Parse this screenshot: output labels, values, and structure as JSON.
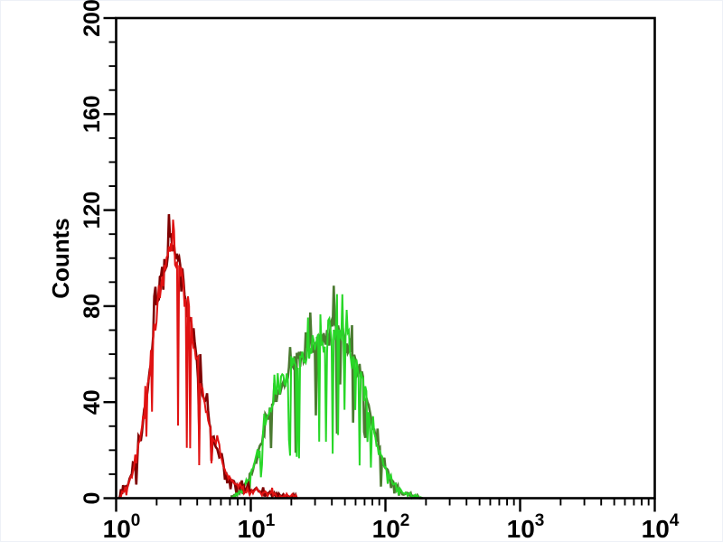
{
  "page": {
    "background": "#ffffff",
    "edge_border": "#edf1f7",
    "description": "Flow cytometry single-parameter histogram overlay with red (negative control) and green (positive) populations"
  },
  "chart_data": {
    "type": "area",
    "subtype": "flow-cytometry-histogram-overlay",
    "title": "",
    "xlabel": "",
    "ylabel": "Counts",
    "x_scale": "log10",
    "x_range_log10": [
      0,
      4
    ],
    "ylim": [
      0,
      200
    ],
    "grid": false,
    "legend": null,
    "frame_color": "#000000",
    "y_major_step": 40,
    "y_minor_step": 10,
    "y_ticks": [
      {
        "value": 0,
        "label": "0"
      },
      {
        "value": 40,
        "label": "40"
      },
      {
        "value": 80,
        "label": "80"
      },
      {
        "value": 120,
        "label": "120"
      },
      {
        "value": 160,
        "label": "160"
      },
      {
        "value": 200,
        "label": "200"
      }
    ],
    "x_ticks": [
      {
        "log10": 0,
        "base": "10",
        "exp": "0"
      },
      {
        "log10": 1,
        "base": "10",
        "exp": "1"
      },
      {
        "log10": 2,
        "base": "10",
        "exp": "2"
      },
      {
        "log10": 3,
        "base": "10",
        "exp": "3"
      },
      {
        "log10": 4,
        "base": "10",
        "exp": "4"
      }
    ],
    "series": [
      {
        "name": "green-histogram",
        "role": "stained population (right peak)",
        "color_bright": "#28d728",
        "color_dark": "#4a7a30",
        "seed": 2024,
        "noise_base": 1.2,
        "noise_frac": 0.1,
        "spike_up_p": 0.05,
        "notch_p": 0.1,
        "peak": {
          "x": 44,
          "counts": 72
        },
        "envelope_log10x_counts": [
          [
            0.85,
            0
          ],
          [
            0.9,
            2
          ],
          [
            0.95,
            5
          ],
          [
            1.0,
            10
          ],
          [
            1.05,
            18
          ],
          [
            1.1,
            28
          ],
          [
            1.15,
            38
          ],
          [
            1.2,
            45
          ],
          [
            1.25,
            50
          ],
          [
            1.3,
            55
          ],
          [
            1.35,
            58
          ],
          [
            1.4,
            60
          ],
          [
            1.45,
            62
          ],
          [
            1.5,
            64
          ],
          [
            1.55,
            66
          ],
          [
            1.6,
            70
          ],
          [
            1.64,
            72
          ],
          [
            1.68,
            68
          ],
          [
            1.72,
            64
          ],
          [
            1.76,
            60
          ],
          [
            1.8,
            53
          ],
          [
            1.85,
            43
          ],
          [
            1.9,
            31
          ],
          [
            1.95,
            20
          ],
          [
            2.0,
            12
          ],
          [
            2.05,
            7
          ],
          [
            2.1,
            4
          ],
          [
            2.15,
            2
          ],
          [
            2.22,
            1
          ],
          [
            2.28,
            0
          ]
        ]
      },
      {
        "name": "red-histogram",
        "role": "negative control population (left peak)",
        "color_bright": "#e01212",
        "color_dark": "#7e0000",
        "seed": 911,
        "noise_base": 1.2,
        "noise_frac": 0.09,
        "spike_up_p": 0.05,
        "notch_p": 0.07,
        "peak": {
          "x": 2.7,
          "counts": 107
        },
        "envelope_log10x_counts": [
          [
            0.02,
            0
          ],
          [
            0.06,
            3
          ],
          [
            0.1,
            7
          ],
          [
            0.15,
            16
          ],
          [
            0.2,
            32
          ],
          [
            0.25,
            55
          ],
          [
            0.3,
            78
          ],
          [
            0.35,
            93
          ],
          [
            0.4,
            102
          ],
          [
            0.43,
            107
          ],
          [
            0.46,
            99
          ],
          [
            0.5,
            90
          ],
          [
            0.55,
            74
          ],
          [
            0.6,
            57
          ],
          [
            0.65,
            42
          ],
          [
            0.7,
            30
          ],
          [
            0.75,
            20
          ],
          [
            0.8,
            13
          ],
          [
            0.85,
            8
          ],
          [
            0.9,
            5
          ],
          [
            0.95,
            4
          ],
          [
            1.0,
            3
          ],
          [
            1.05,
            3
          ],
          [
            1.1,
            2
          ],
          [
            1.15,
            2
          ],
          [
            1.2,
            1
          ],
          [
            1.25,
            1
          ],
          [
            1.3,
            1
          ],
          [
            1.35,
            0
          ]
        ]
      }
    ]
  }
}
